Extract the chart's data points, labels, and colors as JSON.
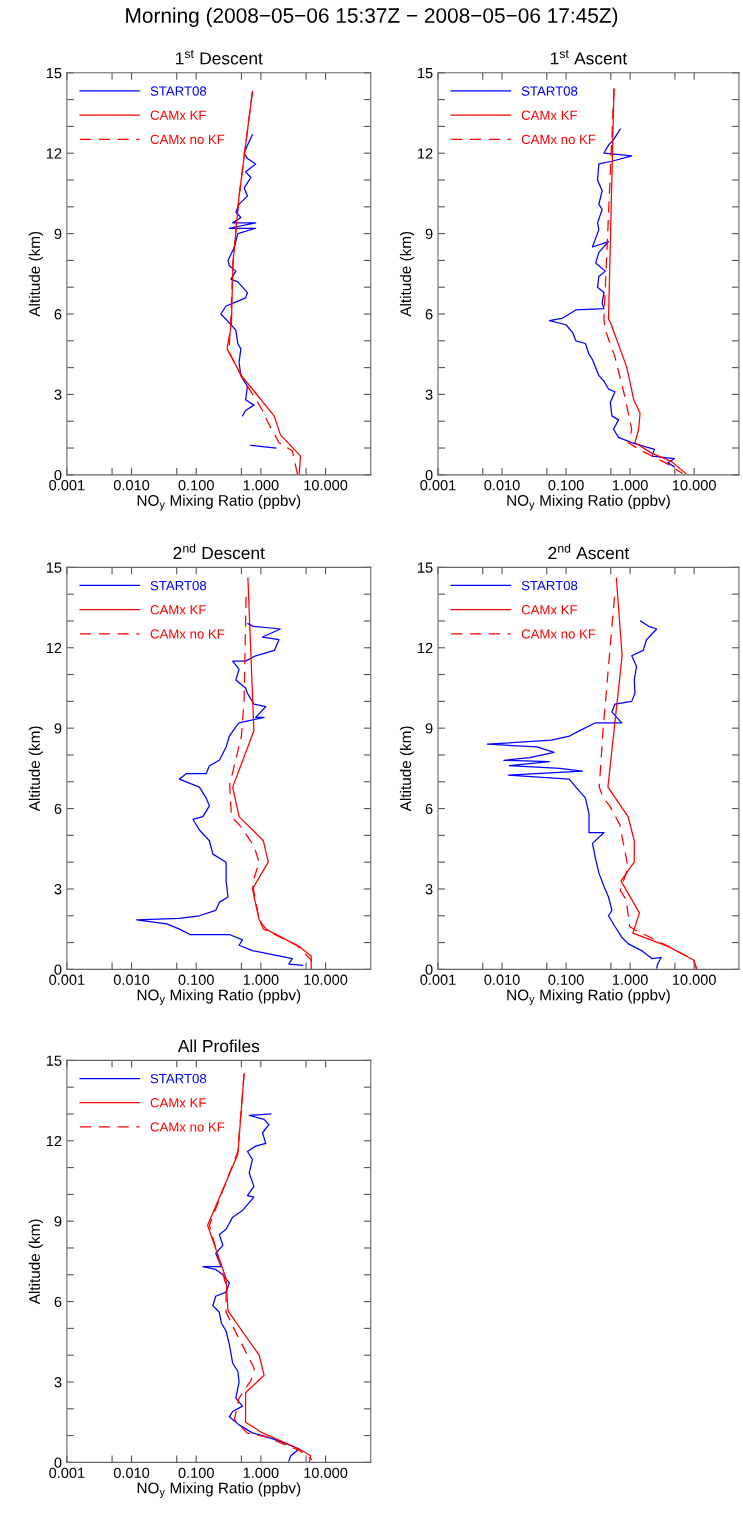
{
  "chart_data": [
    {
      "type": "other",
      "title": "Morning (2008−05−06 15:37Z − 2008−05−06 17:45Z)"
    },
    {
      "type": "line",
      "title": "1$^{st}$ Descent",
      "xlabel": "NO$_{y}$ Mixing Ratio (ppbv)",
      "ylabel": "Altitude (km)",
      "log": "x",
      "legend": "top left",
      "xlim": [
        0.001,
        50
      ],
      "xticks": [
        {
          "value": 0.001,
          "label": "0.001"
        },
        {
          "value": 0.005,
          "label": null
        },
        {
          "value": 0.01,
          "label": "0.010"
        },
        {
          "value": 0.05,
          "label": null
        },
        {
          "value": 0.1,
          "label": "0.100"
        },
        {
          "value": 0.5,
          "label": null
        },
        {
          "value": 1,
          "label": "1.000"
        },
        {
          "value": 5,
          "label": null
        },
        {
          "value": 10,
          "label": "10.000"
        }
      ],
      "ylim": [
        0,
        15
      ],
      "yticks": [
        0,
        {
          "value": 1,
          "label": null
        },
        {
          "value": 2,
          "label": null
        },
        3,
        {
          "value": 4,
          "label": null
        },
        {
          "value": 5,
          "label": null
        },
        6,
        {
          "value": 7,
          "label": null
        },
        {
          "value": 8,
          "label": null
        },
        9,
        {
          "value": 10,
          "label": null
        },
        {
          "value": 11,
          "label": null
        },
        12,
        {
          "value": 13,
          "label": null
        },
        {
          "value": 14,
          "label": null
        },
        15
      ],
      "series": [
        {
          "name": "START08",
          "color": "#0000ff",
          "line_style": "solid",
          "x": [
            0.74,
            0.62,
            0.55,
            0.62,
            0.83,
            0.58,
            0.7,
            0.55,
            0.62,
            0.46,
            0.41,
            0.49,
            0.366,
            0.83,
            0.325,
            0.83,
            0.44,
            0.39,
            0.31,
            0.325,
            0.41,
            0.345,
            0.44,
            0.62,
            0.58,
            0.366,
            0.29,
            0.24,
            0.29,
            0.345,
            0.41,
            0.44,
            0.49,
            0.46,
            0.49,
            0.62,
            0.58,
            0.78,
            0.58,
            0.52,
            null,
            0.7,
            1.06,
            1.7
          ],
          "values": [
            12.7,
            12.3,
            12.0,
            11.8,
            11.6,
            11.3,
            11.1,
            10.7,
            10.4,
            10.1,
            9.8,
            9.6,
            9.4,
            9.4,
            9.2,
            9.2,
            9.0,
            8.5,
            8.0,
            7.8,
            7.6,
            7.3,
            7.2,
            6.8,
            6.6,
            6.4,
            6.3,
            6.0,
            5.8,
            5.6,
            5.4,
            4.9,
            4.7,
            4.2,
            3.7,
            3.3,
            2.8,
            2.6,
            2.4,
            2.2,
            null,
            1.1,
            1.05,
            1.0
          ]
        },
        {
          "name": "CAMx KF",
          "color": "#ff0000",
          "line_style": "solid",
          "x": [
            0.74,
            0.46,
            0.37,
            0.35,
            0.3,
            0.5,
            0.8,
            1.6,
            2.0,
            4.1,
            3.9
          ],
          "values": [
            14.3,
            10.4,
            7.9,
            5.6,
            4.7,
            3.7,
            3.1,
            2.2,
            1.5,
            0.7,
            0.0
          ]
        },
        {
          "name": "CAMx no KF",
          "color": "#ff0000",
          "line_style": "dashed",
          "x": [
            0.74,
            0.46,
            0.37,
            0.34,
            0.32,
            0.52,
            0.75,
            1.06,
            1.26,
            1.9,
            3.06,
            3.7
          ],
          "values": [
            14.3,
            10.4,
            7.9,
            5.6,
            4.6,
            3.6,
            3.0,
            2.4,
            2.0,
            1.2,
            0.9,
            0.0
          ]
        }
      ]
    },
    {
      "type": "line",
      "title": "1$^{st}$ Ascent",
      "xlabel": "NO$_{y}$ Mixing Ratio (ppbv)",
      "ylabel": "Altitude (km)",
      "log": "x",
      "legend": "top left",
      "xlim": [
        0.001,
        50
      ],
      "xticks": [
        {
          "value": 0.001,
          "label": "0.001"
        },
        {
          "value": 0.005,
          "label": null
        },
        {
          "value": 0.01,
          "label": "0.010"
        },
        {
          "value": 0.05,
          "label": null
        },
        {
          "value": 0.1,
          "label": "0.100"
        },
        {
          "value": 0.5,
          "label": null
        },
        {
          "value": 1,
          "label": "1.000"
        },
        {
          "value": 5,
          "label": null
        },
        {
          "value": 10,
          "label": "10.000"
        }
      ],
      "ylim": [
        0,
        15
      ],
      "yticks": [
        0,
        {
          "value": 1,
          "label": null
        },
        {
          "value": 2,
          "label": null
        },
        3,
        {
          "value": 4,
          "label": null
        },
        {
          "value": 5,
          "label": null
        },
        6,
        {
          "value": 7,
          "label": null
        },
        {
          "value": 8,
          "label": null
        },
        9,
        {
          "value": 10,
          "label": null
        },
        {
          "value": 11,
          "label": null
        },
        12,
        {
          "value": 13,
          "label": null
        },
        {
          "value": 14,
          "label": null
        },
        15
      ],
      "series": [
        {
          "name": "START08",
          "color": "#0000ff",
          "line_style": "solid",
          "x": [
            0.7,
            0.55,
            0.46,
            0.39,
            1.06,
            0.52,
            0.325,
            0.31,
            0.366,
            0.325,
            0.366,
            0.31,
            0.325,
            0.258,
            0.46,
            0.325,
            0.29,
            0.41,
            0.325,
            0.31,
            0.39,
            0.366,
            0.39,
            0.142,
            0.112,
            0.089,
            0.055,
            0.1,
            0.127,
            0.142,
            0.2,
            0.228,
            0.258,
            0.325,
            0.39,
            0.46,
            0.58,
            0.49,
            0.52,
            0.66,
            0.55,
            0.66,
            1.06,
            1.7,
            2.4,
            2.2,
            4.9,
            3.9,
            4.9
          ],
          "values": [
            12.9,
            12.5,
            12.3,
            12.0,
            11.9,
            11.7,
            11.6,
            11.0,
            10.6,
            10.1,
            9.9,
            9.4,
            9.15,
            8.5,
            8.7,
            8.3,
            7.9,
            7.6,
            7.4,
            7.0,
            6.8,
            6.4,
            6.2,
            6.15,
            6.0,
            5.85,
            5.75,
            5.6,
            5.3,
            5.0,
            4.9,
            4.5,
            4.3,
            3.7,
            3.5,
            3.2,
            3.1,
            2.7,
            2.2,
            2.05,
            1.7,
            1.4,
            1.2,
            1.05,
            0.95,
            0.7,
            0.6,
            0.45,
            0.3
          ]
        },
        {
          "name": "CAMx KF",
          "color": "#ff0000",
          "line_style": "solid",
          "x": [
            0.56,
            0.46,
            0.49,
            0.89,
            1.14,
            1.43,
            1.36,
            1.19,
            2.2,
            4.4,
            7.4
          ],
          "values": [
            14.4,
            5.8,
            5.7,
            4.0,
            2.8,
            2.3,
            1.7,
            1.2,
            0.8,
            0.5,
            0.05
          ]
        },
        {
          "name": "CAMx no KF",
          "color": "#ff0000",
          "line_style": "dashed",
          "x": [
            0.56,
            0.39,
            0.41,
            0.58,
            0.83,
            1.06,
            0.94,
            1.5,
            3.9,
            6.6
          ],
          "values": [
            14.4,
            5.8,
            5.4,
            4.4,
            2.9,
            1.7,
            1.2,
            0.9,
            0.4,
            0.05
          ]
        }
      ]
    },
    {
      "type": "line",
      "title": "2$^{nd}$ Descent",
      "xlabel": "NO$_{y}$ Mixing Ratio (ppbv)",
      "ylabel": "Altitude (km)",
      "log": "x",
      "legend": "top left",
      "xlim": [
        0.001,
        50
      ],
      "xticks": [
        {
          "value": 0.001,
          "label": "0.001"
        },
        {
          "value": 0.005,
          "label": null
        },
        {
          "value": 0.01,
          "label": "0.010"
        },
        {
          "value": 0.05,
          "label": null
        },
        {
          "value": 0.1,
          "label": "0.100"
        },
        {
          "value": 0.5,
          "label": null
        },
        {
          "value": 1,
          "label": "1.000"
        },
        {
          "value": 5,
          "label": null
        },
        {
          "value": 10,
          "label": "10.000"
        }
      ],
      "ylim": [
        0,
        15
      ],
      "yticks": [
        0,
        {
          "value": 1,
          "label": null
        },
        {
          "value": 2,
          "label": null
        },
        3,
        {
          "value": 4,
          "label": null
        },
        {
          "value": 5,
          "label": null
        },
        6,
        {
          "value": 7,
          "label": null
        },
        {
          "value": 8,
          "label": null
        },
        9,
        {
          "value": 10,
          "label": null
        },
        {
          "value": 11,
          "label": null
        },
        12,
        {
          "value": 13,
          "label": null
        },
        {
          "value": 14,
          "label": null
        },
        15
      ],
      "series": [
        {
          "name": "START08",
          "color": "#0000ff",
          "line_style": "solid",
          "x": [
            0.63,
            0.76,
            2.0,
            1.06,
            1.9,
            1.62,
            0.83,
            0.58,
            0.366,
            0.46,
            0.41,
            0.58,
            0.62,
            0.78,
            1.19,
            0.83,
            1.12,
            0.46,
            0.41,
            0.325,
            0.29,
            0.228,
            0.16,
            0.142,
            0.07,
            0.055,
            0.112,
            0.142,
            0.16,
            0.127,
            0.089,
            0.112,
            0.16,
            0.181,
            0.29,
            0.29,
            0.31,
            0.228,
            0.2,
            0.112,
            0.055,
            0.012,
            0.035,
            0.055,
            0.08,
            0.325,
            0.52,
            0.46,
            0.74,
            1.51,
            3.06,
            2.7,
            4.4
          ],
          "values": [
            12.9,
            12.8,
            12.7,
            12.4,
            12.3,
            11.9,
            11.7,
            11.5,
            11.5,
            11.2,
            10.8,
            10.5,
            10.3,
            9.9,
            9.8,
            9.4,
            9.4,
            9.2,
            9.05,
            8.7,
            8.3,
            7.8,
            7.6,
            7.3,
            7.3,
            7.1,
            6.8,
            6.4,
            6.1,
            5.7,
            5.6,
            5.2,
            4.8,
            4.3,
            4.0,
            3.3,
            2.7,
            2.5,
            2.2,
            2.0,
            1.9,
            1.85,
            1.7,
            1.5,
            1.3,
            1.3,
            1.1,
            0.9,
            0.7,
            0.55,
            0.4,
            0.2,
            0.15
          ]
        },
        {
          "name": "CAMx KF",
          "color": "#ff0000",
          "line_style": "solid",
          "x": [
            0.63,
            0.78,
            0.366,
            0.46,
            1.09,
            1.3,
            0.74,
            0.94,
            1.2,
            3.9,
            6.0,
            6.0
          ],
          "values": [
            14.6,
            8.9,
            6.8,
            5.7,
            4.8,
            4.0,
            3.0,
            1.85,
            1.5,
            0.85,
            0.5,
            0.0
          ]
        },
        {
          "name": "CAMx no KF",
          "color": "#ff0000",
          "line_style": "dashed",
          "x": [
            0.59,
            0.55,
            0.5,
            0.33,
            0.35,
            0.5,
            0.78,
            0.94,
            0.74,
            0.94,
            1.1,
            3.6,
            6.0,
            6.3
          ],
          "values": [
            13.9,
            10.0,
            8.7,
            6.9,
            5.7,
            5.3,
            4.6,
            4.0,
            3.2,
            1.85,
            1.5,
            0.9,
            0.35,
            0.0
          ]
        }
      ]
    },
    {
      "type": "line",
      "title": "2$^{nd}$ Ascent",
      "xlabel": "NO$_{y}$ Mixing Ratio (ppbv)",
      "ylabel": "Altitude (km)",
      "log": "x",
      "legend": "top left",
      "xlim": [
        0.001,
        50
      ],
      "xticks": [
        {
          "value": 0.001,
          "label": "0.001"
        },
        {
          "value": 0.005,
          "label": null
        },
        {
          "value": 0.01,
          "label": "0.010"
        },
        {
          "value": 0.05,
          "label": null
        },
        {
          "value": 0.1,
          "label": "0.100"
        },
        {
          "value": 0.5,
          "label": null
        },
        {
          "value": 1,
          "label": "1.000"
        },
        {
          "value": 5,
          "label": null
        },
        {
          "value": 10,
          "label": "10.000"
        }
      ],
      "ylim": [
        0,
        15
      ],
      "yticks": [
        0,
        {
          "value": 1,
          "label": null
        },
        {
          "value": 2,
          "label": null
        },
        3,
        {
          "value": 4,
          "label": null
        },
        {
          "value": 5,
          "label": null
        },
        6,
        {
          "value": 7,
          "label": null
        },
        {
          "value": 8,
          "label": null
        },
        9,
        {
          "value": 10,
          "label": null
        },
        {
          "value": 11,
          "label": null
        },
        12,
        {
          "value": 13,
          "label": null
        },
        {
          "value": 14,
          "label": null
        },
        15
      ],
      "series": [
        {
          "name": "START08",
          "color": "#0000ff",
          "line_style": "solid",
          "x": [
            1.46,
            1.95,
            2.6,
            1.8,
            1.6,
            1.06,
            1.26,
            1.16,
            1.19,
            1.06,
            0.58,
            0.52,
            0.74,
            0.29,
            0.16,
            0.112,
            0.059,
            0.0059,
            0.035,
            0.065,
            0.027,
            0.0107,
            0.055,
            0.013,
            0.08,
            0.18,
            0.0125,
            0.112,
            0.142,
            0.2,
            0.228,
            0.228,
            0.39,
            0.258,
            0.29,
            0.325,
            0.39,
            0.46,
            0.52,
            0.46,
            0.58,
            0.74,
            0.94,
            1.51,
            2.2,
            3.06,
            2.7,
            2.6
          ],
          "values": [
            13.0,
            12.8,
            12.7,
            12.3,
            11.9,
            11.7,
            11.3,
            10.8,
            10.3,
            10.0,
            9.9,
            9.6,
            9.2,
            9.2,
            8.9,
            8.7,
            8.55,
            8.4,
            8.3,
            8.1,
            7.9,
            7.8,
            7.75,
            7.6,
            7.5,
            7.4,
            7.25,
            7.1,
            6.8,
            6.4,
            5.8,
            5.1,
            5.1,
            4.7,
            4.1,
            3.6,
            3.1,
            2.7,
            2.2,
            2.0,
            1.6,
            1.2,
            0.95,
            0.7,
            0.4,
            0.45,
            0.2,
            0.05
          ]
        },
        {
          "name": "CAMx KF",
          "color": "#ff0000",
          "line_style": "solid",
          "x": [
            0.61,
            0.75,
            0.45,
            0.93,
            1.16,
            1.16,
            0.72,
            1.4,
            1.1,
            4.0,
            9.8,
            11
          ],
          "values": [
            14.6,
            11.7,
            6.8,
            5.7,
            4.8,
            4.0,
            3.3,
            2.1,
            1.35,
            0.85,
            0.35,
            0.0
          ]
        },
        {
          "name": "CAMx no KF",
          "color": "#ff0000",
          "line_style": "dashed",
          "x": [
            0.57,
            0.38,
            0.33,
            0.38,
            0.48,
            0.69,
            0.93,
            0.7,
            0.87,
            0.98,
            1.2,
            4.0,
            9.8,
            11
          ],
          "values": [
            13.9,
            9.0,
            6.8,
            6.4,
            6.1,
            5.4,
            3.8,
            2.95,
            2.6,
            1.6,
            1.47,
            0.85,
            0.35,
            0.0
          ]
        }
      ]
    },
    {
      "type": "line",
      "title": "All Profiles",
      "xlabel": "NO$_{y}$ Mixing Ratio (ppbv)",
      "ylabel": "Altitude (km)",
      "log": "x",
      "legend": "top left",
      "xlim": [
        0.001,
        50
      ],
      "xticks": [
        {
          "value": 0.001,
          "label": "0.001"
        },
        {
          "value": 0.005,
          "label": null
        },
        {
          "value": 0.01,
          "label": "0.010"
        },
        {
          "value": 0.05,
          "label": null
        },
        {
          "value": 0.1,
          "label": "0.100"
        },
        {
          "value": 0.5,
          "label": null
        },
        {
          "value": 1,
          "label": "1.000"
        },
        {
          "value": 5,
          "label": null
        },
        {
          "value": 10,
          "label": "10.000"
        }
      ],
      "ylim": [
        0,
        15
      ],
      "yticks": [
        0,
        {
          "value": 1,
          "label": null
        },
        {
          "value": 2,
          "label": null
        },
        3,
        {
          "value": 4,
          "label": null
        },
        {
          "value": 5,
          "label": null
        },
        6,
        {
          "value": 7,
          "label": null
        },
        {
          "value": 8,
          "label": null
        },
        9,
        {
          "value": 10,
          "label": null
        },
        {
          "value": 11,
          "label": null
        },
        12,
        {
          "value": 13,
          "label": null
        },
        {
          "value": 14,
          "label": null
        },
        15
      ],
      "series": [
        {
          "name": "START08",
          "color": "#0000ff",
          "line_style": "solid",
          "x": [
            1.43,
            0.66,
            1.12,
            1.33,
            1.06,
            1.19,
            0.83,
            0.62,
            0.74,
            0.66,
            0.78,
            0.62,
            0.78,
            0.52,
            0.366,
            0.29,
            0.228,
            0.258,
            0.2,
            0.245,
            0.127,
            0.2,
            0.258,
            0.325,
            0.29,
            0.2,
            0.181,
            0.228,
            0.245,
            0.29,
            0.325,
            0.366,
            0.44,
            0.46,
            0.41,
            0.52,
            0.366,
            0.325,
            0.46,
            0.74,
            1.06,
            1.91,
            3.9,
            2.9,
            2.7
          ],
          "values": [
            13.0,
            12.95,
            12.8,
            12.6,
            12.3,
            11.9,
            11.8,
            11.6,
            11.3,
            10.8,
            10.3,
            9.95,
            9.9,
            9.4,
            9.15,
            8.7,
            8.5,
            8.1,
            7.8,
            7.3,
            7.3,
            7.2,
            7.0,
            6.7,
            6.35,
            6.2,
            5.85,
            5.6,
            5.2,
            4.9,
            4.4,
            3.7,
            3.4,
            3.0,
            2.4,
            2.1,
            1.9,
            1.7,
            1.4,
            1.1,
            1.0,
            0.8,
            0.5,
            0.25,
            0.05
          ]
        },
        {
          "name": "CAMx KF",
          "color": "#ff0000",
          "line_style": "solid",
          "x": [
            0.55,
            0.44,
            0.15,
            0.29,
            0.31,
            0.94,
            1.12,
            0.58,
            0.58,
            1.06,
            3.9,
            5.9,
            5.6
          ],
          "values": [
            14.5,
            11.5,
            8.85,
            6.85,
            5.65,
            4.0,
            3.25,
            2.6,
            1.5,
            1.1,
            0.5,
            0.25,
            0.0
          ]
        },
        {
          "name": "CAMx no KF",
          "color": "#ff0000",
          "line_style": "dashed",
          "x": [
            0.55,
            0.44,
            0.16,
            0.29,
            0.29,
            0.41,
            0.79,
            0.7,
            0.46,
            0.39,
            0.61,
            1.19,
            3.9,
            6.2
          ],
          "values": [
            14.5,
            11.6,
            8.85,
            6.6,
            5.6,
            4.85,
            3.5,
            3.05,
            2.4,
            1.6,
            1.1,
            0.95,
            0.45,
            0.1
          ]
        }
      ]
    }
  ]
}
